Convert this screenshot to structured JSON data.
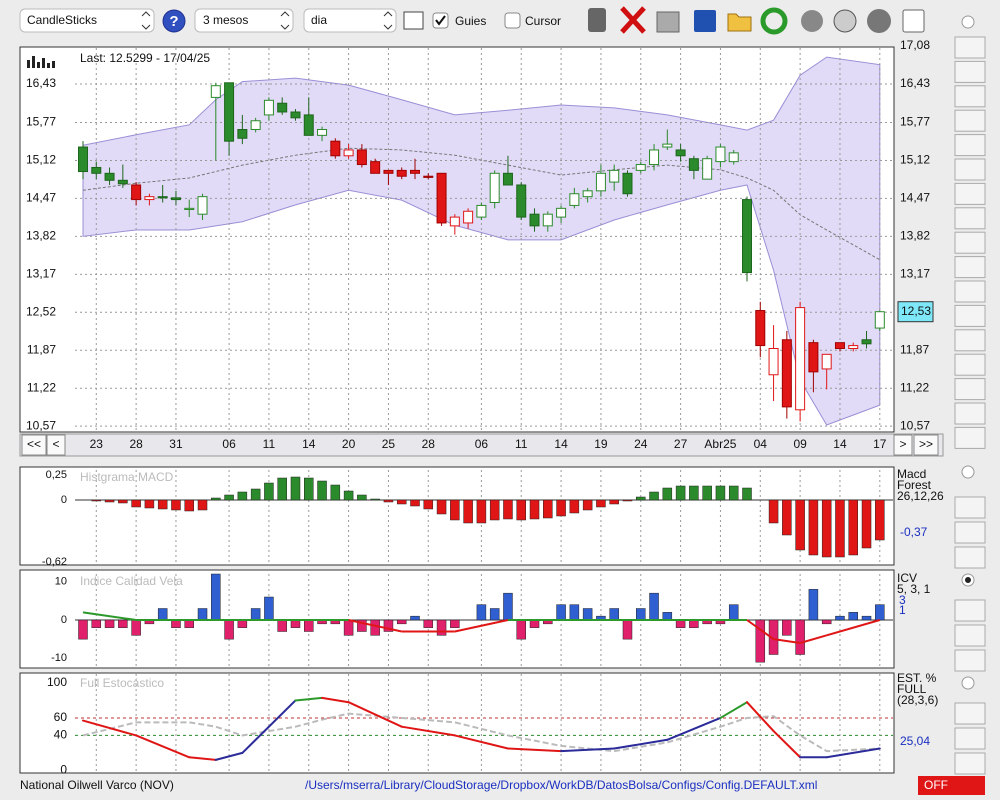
{
  "toolbar": {
    "chart_type": "CandleSticks",
    "period": "3 mesos",
    "interval": "dia",
    "guides": {
      "label": "Guies",
      "checked": true
    },
    "cursor": {
      "label": "Cursor",
      "checked": false
    }
  },
  "main_chart": {
    "type": "candlestick",
    "last_label": "Last: 12.5299 - 17/04/25",
    "price_tag": "12,53",
    "ylim": [
      10.47,
      17.08
    ],
    "yticks": [
      {
        "value": 16.43,
        "label": "16,43"
      },
      {
        "value": 15.77,
        "label": "15,77"
      },
      {
        "value": 15.12,
        "label": "15,12"
      },
      {
        "value": 14.47,
        "label": "14,47"
      },
      {
        "value": 13.82,
        "label": "13,82"
      },
      {
        "value": 13.17,
        "label": "13,17"
      },
      {
        "value": 12.52,
        "label": "12,52"
      },
      {
        "value": 11.87,
        "label": "11,87"
      },
      {
        "value": 11.22,
        "label": "11,22"
      },
      {
        "value": 10.57,
        "label": "10,57"
      }
    ],
    "top_tick": {
      "value": 17.08,
      "label": "17,08"
    },
    "styles": {
      "G": {
        "fill": "#2b8a2b",
        "stroke": "#1d661d"
      },
      "g": {
        "fill": "#ffffff",
        "stroke": "#2b8a2b"
      },
      "R": {
        "fill": "#e01616",
        "stroke": "#a00000"
      },
      "r": {
        "fill": "#ffffff",
        "stroke": "#e01616"
      }
    },
    "candles": [
      {
        "o": 15.35,
        "h": 15.45,
        "l": 14.8,
        "c": 14.93,
        "k": "G"
      },
      {
        "o": 15.0,
        "h": 15.1,
        "l": 14.8,
        "c": 14.9,
        "k": "G"
      },
      {
        "o": 14.9,
        "h": 15.0,
        "l": 14.7,
        "c": 14.78,
        "k": "G"
      },
      {
        "o": 14.78,
        "h": 15.05,
        "l": 14.65,
        "c": 14.72,
        "k": "G"
      },
      {
        "o": 14.7,
        "h": 14.75,
        "l": 14.35,
        "c": 14.45,
        "k": "R"
      },
      {
        "o": 14.45,
        "h": 14.55,
        "l": 14.35,
        "c": 14.5,
        "k": "r"
      },
      {
        "o": 14.5,
        "h": 14.7,
        "l": 14.4,
        "c": 14.48,
        "k": "G"
      },
      {
        "o": 14.48,
        "h": 14.6,
        "l": 14.35,
        "c": 14.45,
        "k": "G"
      },
      {
        "o": 14.28,
        "h": 14.45,
        "l": 14.15,
        "c": 14.3,
        "k": "g"
      },
      {
        "o": 14.2,
        "h": 14.55,
        "l": 14.1,
        "c": 14.5,
        "k": "g"
      },
      {
        "o": 16.2,
        "h": 16.45,
        "l": 15.12,
        "c": 16.4,
        "k": "g"
      },
      {
        "o": 16.45,
        "h": 16.4,
        "l": 15.2,
        "c": 15.45,
        "k": "G"
      },
      {
        "o": 15.65,
        "h": 15.9,
        "l": 15.4,
        "c": 15.5,
        "k": "G"
      },
      {
        "o": 15.65,
        "h": 15.85,
        "l": 15.6,
        "c": 15.8,
        "k": "g"
      },
      {
        "o": 15.9,
        "h": 16.2,
        "l": 15.8,
        "c": 16.15,
        "k": "g"
      },
      {
        "o": 16.1,
        "h": 16.2,
        "l": 15.9,
        "c": 15.95,
        "k": "G"
      },
      {
        "o": 15.95,
        "h": 16.0,
        "l": 15.8,
        "c": 15.85,
        "k": "G"
      },
      {
        "o": 15.9,
        "h": 16.2,
        "l": 15.55,
        "c": 15.55,
        "k": "G"
      },
      {
        "o": 15.55,
        "h": 15.7,
        "l": 15.45,
        "c": 15.65,
        "k": "g"
      },
      {
        "o": 15.45,
        "h": 15.5,
        "l": 15.15,
        "c": 15.2,
        "k": "R"
      },
      {
        "o": 15.2,
        "h": 15.4,
        "l": 15.15,
        "c": 15.3,
        "k": "r"
      },
      {
        "o": 15.3,
        "h": 15.4,
        "l": 15.0,
        "c": 15.05,
        "k": "R"
      },
      {
        "o": 15.1,
        "h": 15.15,
        "l": 14.9,
        "c": 14.9,
        "k": "R"
      },
      {
        "o": 14.95,
        "h": 14.95,
        "l": 14.7,
        "c": 14.9,
        "k": "R"
      },
      {
        "o": 14.95,
        "h": 15.0,
        "l": 14.8,
        "c": 14.85,
        "k": "R"
      },
      {
        "o": 14.95,
        "h": 15.15,
        "l": 14.8,
        "c": 14.9,
        "k": "R"
      },
      {
        "o": 14.85,
        "h": 14.9,
        "l": 14.8,
        "c": 14.83,
        "k": "R"
      },
      {
        "o": 14.9,
        "h": 14.9,
        "l": 14.0,
        "c": 14.05,
        "k": "R"
      },
      {
        "o": 14.0,
        "h": 14.2,
        "l": 13.85,
        "c": 14.15,
        "k": "r"
      },
      {
        "o": 14.05,
        "h": 14.3,
        "l": 13.95,
        "c": 14.25,
        "k": "r"
      },
      {
        "o": 14.15,
        "h": 14.4,
        "l": 14.1,
        "c": 14.35,
        "k": "g"
      },
      {
        "o": 14.4,
        "h": 14.95,
        "l": 14.3,
        "c": 14.9,
        "k": "g"
      },
      {
        "o": 14.9,
        "h": 15.2,
        "l": 14.7,
        "c": 14.7,
        "k": "G"
      },
      {
        "o": 14.7,
        "h": 14.75,
        "l": 14.1,
        "c": 14.15,
        "k": "G"
      },
      {
        "o": 14.2,
        "h": 14.3,
        "l": 13.9,
        "c": 14.0,
        "k": "G"
      },
      {
        "o": 14.0,
        "h": 14.25,
        "l": 13.9,
        "c": 14.2,
        "k": "g"
      },
      {
        "o": 14.15,
        "h": 14.35,
        "l": 14.05,
        "c": 14.3,
        "k": "g"
      },
      {
        "o": 14.35,
        "h": 14.65,
        "l": 14.3,
        "c": 14.55,
        "k": "g"
      },
      {
        "o": 14.5,
        "h": 14.65,
        "l": 14.4,
        "c": 14.6,
        "k": "g"
      },
      {
        "o": 14.6,
        "h": 15.05,
        "l": 14.5,
        "c": 14.9,
        "k": "g"
      },
      {
        "o": 14.75,
        "h": 15.05,
        "l": 14.6,
        "c": 14.95,
        "k": "g"
      },
      {
        "o": 14.9,
        "h": 14.95,
        "l": 14.5,
        "c": 14.55,
        "k": "G"
      },
      {
        "o": 14.95,
        "h": 15.1,
        "l": 14.9,
        "c": 15.05,
        "k": "g"
      },
      {
        "o": 15.05,
        "h": 15.4,
        "l": 14.95,
        "c": 15.3,
        "k": "g"
      },
      {
        "o": 15.35,
        "h": 15.65,
        "l": 15.3,
        "c": 15.4,
        "k": "g"
      },
      {
        "o": 15.3,
        "h": 15.4,
        "l": 15.1,
        "c": 15.2,
        "k": "G"
      },
      {
        "o": 15.15,
        "h": 15.2,
        "l": 14.8,
        "c": 14.95,
        "k": "G"
      },
      {
        "o": 14.8,
        "h": 15.2,
        "l": 14.8,
        "c": 15.15,
        "k": "g"
      },
      {
        "o": 15.1,
        "h": 15.4,
        "l": 15.0,
        "c": 15.35,
        "k": "g"
      },
      {
        "o": 15.1,
        "h": 15.3,
        "l": 15.05,
        "c": 15.25,
        "k": "g"
      },
      {
        "o": 14.45,
        "h": 14.5,
        "l": 13.05,
        "c": 13.2,
        "k": "G"
      },
      {
        "o": 12.55,
        "h": 12.7,
        "l": 11.75,
        "c": 11.95,
        "k": "R"
      },
      {
        "o": 11.9,
        "h": 12.3,
        "l": 11.0,
        "c": 11.45,
        "k": "r"
      },
      {
        "o": 12.05,
        "h": 12.2,
        "l": 10.7,
        "c": 10.9,
        "k": "R"
      },
      {
        "o": 12.6,
        "h": 12.7,
        "l": 10.65,
        "c": 10.85,
        "k": "r"
      },
      {
        "o": 12.0,
        "h": 12.05,
        "l": 11.15,
        "c": 11.5,
        "k": "R"
      },
      {
        "o": 11.55,
        "h": 11.8,
        "l": 11.2,
        "c": 11.8,
        "k": "r"
      },
      {
        "o": 12.0,
        "h": 12.0,
        "l": 11.85,
        "c": 11.9,
        "k": "R"
      },
      {
        "o": 11.9,
        "h": 12.0,
        "l": 11.85,
        "c": 11.95,
        "k": "r"
      },
      {
        "o": 12.05,
        "h": 12.2,
        "l": 11.9,
        "c": 11.98,
        "k": "G"
      },
      {
        "o": 12.25,
        "h": 12.55,
        "l": 12.2,
        "c": 12.53,
        "k": "g"
      }
    ],
    "band": {
      "color": "#d9d2f5",
      "line_color": "#9b8fd6",
      "x": [
        0,
        4,
        8,
        10,
        12,
        16,
        20,
        24,
        28,
        32,
        36,
        40,
        44,
        48,
        50,
        52,
        54,
        56,
        60
      ],
      "upper": [
        15.38,
        15.56,
        15.73,
        16.16,
        16.47,
        16.53,
        16.41,
        16.16,
        15.9,
        15.98,
        16.07,
        16.02,
        15.9,
        15.73,
        15.64,
        15.81,
        16.58,
        16.89,
        16.76
      ],
      "middle": [
        14.61,
        14.73,
        14.82,
        14.93,
        15.04,
        15.21,
        15.33,
        15.3,
        15.21,
        15.04,
        14.87,
        14.96,
        15.04,
        14.96,
        14.82,
        14.61,
        14.19,
        13.93,
        13.42
      ],
      "lower": [
        13.82,
        13.93,
        13.93,
        14.0,
        14.07,
        14.36,
        14.61,
        14.44,
        14.01,
        13.76,
        13.76,
        14.1,
        14.36,
        14.61,
        14.7,
        13.24,
        11.36,
        10.59,
        10.93
      ]
    },
    "x_labels": [
      {
        "i": 1,
        "label": "23"
      },
      {
        "i": 4,
        "label": "28"
      },
      {
        "i": 7,
        "label": "31"
      },
      {
        "i": 11,
        "label": "06"
      },
      {
        "i": 14,
        "label": "11"
      },
      {
        "i": 17,
        "label": "14"
      },
      {
        "i": 20,
        "label": "20"
      },
      {
        "i": 23,
        "label": "25"
      },
      {
        "i": 26,
        "label": "28"
      },
      {
        "i": 30,
        "label": "06"
      },
      {
        "i": 33,
        "label": "11"
      },
      {
        "i": 36,
        "label": "14"
      },
      {
        "i": 39,
        "label": "19"
      },
      {
        "i": 42,
        "label": "24"
      },
      {
        "i": 45,
        "label": "27"
      },
      {
        "i": 48,
        "label": "Abr25"
      },
      {
        "i": 51,
        "label": "04"
      },
      {
        "i": 54,
        "label": "09"
      },
      {
        "i": 57,
        "label": "14"
      },
      {
        "i": 60,
        "label": "17"
      }
    ],
    "nav": [
      "<<",
      "<",
      ">",
      ">>"
    ]
  },
  "macd": {
    "type": "bar",
    "title": "Histgrama MACD",
    "side_labels": [
      "Macd",
      "Forest",
      "26,12,26"
    ],
    "current_label": "-0,37",
    "pos_color": "#2b8a2b",
    "neg_color": "#e01616",
    "ylim": [
      -0.65,
      0.3
    ],
    "yticks": [
      {
        "value": 0.25,
        "label": "0,25"
      },
      0,
      {
        "value": -0.62,
        "label": "-0,62"
      }
    ],
    "values": [
      0,
      -0.01,
      -0.02,
      -0.03,
      -0.07,
      -0.08,
      -0.09,
      -0.1,
      -0.11,
      -0.1,
      0.02,
      0.05,
      0.08,
      0.11,
      0.17,
      0.22,
      0.23,
      0.22,
      0.19,
      0.15,
      0.09,
      0.05,
      0.01,
      -0.02,
      -0.04,
      -0.06,
      -0.09,
      -0.14,
      -0.2,
      -0.23,
      -0.23,
      -0.2,
      -0.19,
      -0.2,
      -0.19,
      -0.18,
      -0.16,
      -0.13,
      -0.1,
      -0.07,
      -0.04,
      -0.01,
      0.03,
      0.08,
      0.12,
      0.14,
      0.14,
      0.14,
      0.14,
      0.14,
      0.12,
      0,
      -0.23,
      -0.35,
      -0.5,
      -0.55,
      -0.57,
      -0.57,
      -0.55,
      -0.48,
      -0.4
    ]
  },
  "icv": {
    "type": "bar",
    "title": "Indice Calidad Vela",
    "side_labels": [
      "ICV",
      "5, 3, 1"
    ],
    "current_labels": [
      "3",
      "1"
    ],
    "pos_color": "#2f5fd0",
    "neg_color": "#e0206a",
    "line_pos_color": "#2b9a2b",
    "line_neg_color": "#e01616",
    "ylim": [
      -12,
      12
    ],
    "yticks": [
      10,
      0,
      -10
    ],
    "values": [
      -5,
      -2,
      -2,
      -2,
      -4,
      -1,
      3,
      -2,
      -2,
      3,
      12,
      -5,
      -2,
      3,
      6,
      -3,
      -2,
      -3,
      -1,
      -1,
      -4,
      -3,
      -4,
      -3,
      -1,
      1,
      -2,
      -4,
      -2,
      0,
      4,
      3,
      7,
      -5,
      -2,
      -1,
      4,
      4,
      3,
      1,
      3,
      -5,
      3,
      7,
      2,
      -2,
      -2,
      -1,
      -1,
      4,
      0,
      -11,
      -9,
      -4,
      -9,
      8,
      -1,
      1,
      2,
      1,
      4
    ],
    "line": {
      "x": [
        0,
        4,
        8,
        10,
        12,
        16,
        20,
        24,
        28,
        32,
        36,
        40,
        44,
        48,
        50,
        52,
        54,
        56,
        60
      ],
      "values": [
        2,
        0,
        0,
        0,
        0,
        0,
        0,
        -3,
        -3,
        0,
        0,
        0,
        0,
        0,
        0,
        -5,
        -6,
        -4,
        0
      ]
    }
  },
  "stochastic": {
    "type": "line",
    "title": "Full Estocástico",
    "side_labels": [
      "EST. %",
      "FULL",
      "(28,3,6)"
    ],
    "current_label": "25,04",
    "ylim": [
      -3,
      108
    ],
    "yticks": [
      100,
      60,
      40,
      0
    ],
    "levels": [
      {
        "value": 60,
        "color": "#c03030"
      },
      {
        "value": 40,
        "color": "#2b8a2b"
      }
    ],
    "up_color": "#2b2b9a",
    "high_color": "#2b9a2b",
    "down_color": "#e01616",
    "d_color": "#bbbbbb",
    "x": [
      0,
      4,
      8,
      10,
      12,
      16,
      18,
      20,
      24,
      28,
      32,
      36,
      40,
      44,
      48,
      50,
      52,
      54,
      56,
      60
    ],
    "k": [
      57,
      40,
      15,
      12,
      20,
      80,
      83,
      78,
      50,
      40,
      25,
      22,
      25,
      35,
      60,
      78,
      45,
      15,
      15,
      25
    ],
    "d": [
      40,
      55,
      55,
      50,
      40,
      50,
      58,
      65,
      60,
      55,
      40,
      28,
      22,
      32,
      50,
      60,
      62,
      40,
      22,
      25
    ]
  },
  "footer": {
    "name": "National Oilwell Varco (NOV)",
    "path": "/Users/mserra/Library/CloudStorage/Dropbox/WorkDB/DatosBolsa/Configs/Config.DEFAULT.xml",
    "status": "OFF"
  }
}
